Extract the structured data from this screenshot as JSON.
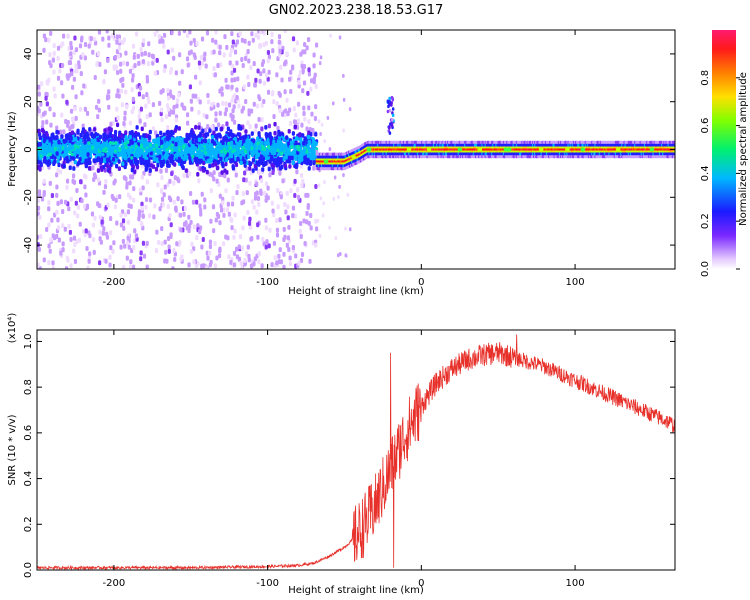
{
  "figure_title": "GN02.2023.238.18.53.G17",
  "colors": {
    "snr_line": "#e8302a",
    "axes": "#000000",
    "spectrogram_palette": [
      "#ffffff",
      "#f0dcff",
      "#c89bff",
      "#8a3cf6",
      "#5a10e8",
      "#2020ff",
      "#00b4ff",
      "#00e0b0",
      "#40ff40",
      "#c8ff00",
      "#ffc000",
      "#ff5a00",
      "#ff1a1a",
      "#ff1a66"
    ]
  },
  "chart_data": [
    {
      "type": "heatmap",
      "title": "GN02.2023.238.18.53.G17",
      "xlabel": "Height of straight line (km)",
      "ylabel": "Frequency (Hz)",
      "xlim": [
        -250,
        165
      ],
      "ylim": [
        -50,
        50
      ],
      "xticks": [
        -200,
        -100,
        0,
        100
      ],
      "xtick_labels": [
        "-200",
        "-100",
        "0",
        "100"
      ],
      "yticks": [
        -40,
        -20,
        0,
        20,
        40
      ],
      "ytick_labels": [
        "-40",
        "-20",
        "0",
        "20",
        "40"
      ],
      "colorbar": {
        "label": "Normalized spectral amplitude",
        "range": [
          0,
          1
        ],
        "ticks": [
          0.0,
          0.2,
          0.4,
          0.6,
          0.8
        ],
        "tick_labels": [
          "0.0",
          "0.2",
          "0.4",
          "0.6",
          "0.8"
        ]
      },
      "ridge": {
        "x": [
          -250,
          -200,
          -150,
          -100,
          -70,
          -68,
          -50,
          -40,
          -35,
          -20,
          0,
          50,
          100,
          165
        ],
        "frequency": [
          0,
          0,
          0,
          0,
          0,
          -5,
          -5,
          -2,
          0,
          0,
          0,
          0,
          0,
          0
        ]
      },
      "noise_region_x": [
        -250,
        -68
      ],
      "clean_region_x": [
        -68,
        165
      ]
    },
    {
      "type": "line",
      "xlabel": "Height of straight line (km)",
      "ylabel": "SNR (10 * v/v)",
      "y_multiplier": "(x10⁴)",
      "xlim": [
        -250,
        165
      ],
      "ylim": [
        0,
        1.05
      ],
      "xticks": [
        -200,
        -100,
        0,
        100
      ],
      "xtick_labels": [
        "-200",
        "-100",
        "0",
        "100"
      ],
      "yticks": [
        0.0,
        0.2,
        0.4,
        0.6,
        0.8,
        1.0
      ],
      "ytick_labels": [
        "0.0",
        "0.2",
        "0.4",
        "0.6",
        "0.8",
        "1.0"
      ],
      "series": [
        {
          "x": [
            -250,
            -200,
            -150,
            -100,
            -80,
            -70,
            -60,
            -50,
            -45,
            -40,
            -35,
            -30,
            -25,
            -20,
            -15,
            -10,
            -5,
            0,
            5,
            10,
            20,
            30,
            40,
            50,
            60,
            70,
            80,
            90,
            100,
            110,
            120,
            130,
            140,
            150,
            160,
            165
          ],
          "values": [
            0.01,
            0.01,
            0.01,
            0.015,
            0.02,
            0.03,
            0.06,
            0.1,
            0.13,
            0.17,
            0.22,
            0.28,
            0.36,
            0.44,
            0.52,
            0.6,
            0.66,
            0.72,
            0.77,
            0.82,
            0.88,
            0.92,
            0.94,
            0.95,
            0.93,
            0.91,
            0.89,
            0.86,
            0.83,
            0.8,
            0.77,
            0.74,
            0.71,
            0.68,
            0.65,
            0.63
          ],
          "spikes": [
            {
              "x": -20,
              "value": 0.95
            },
            {
              "x": -18,
              "value": 0.01
            },
            {
              "x": 62,
              "value": 1.03
            }
          ]
        }
      ]
    }
  ]
}
